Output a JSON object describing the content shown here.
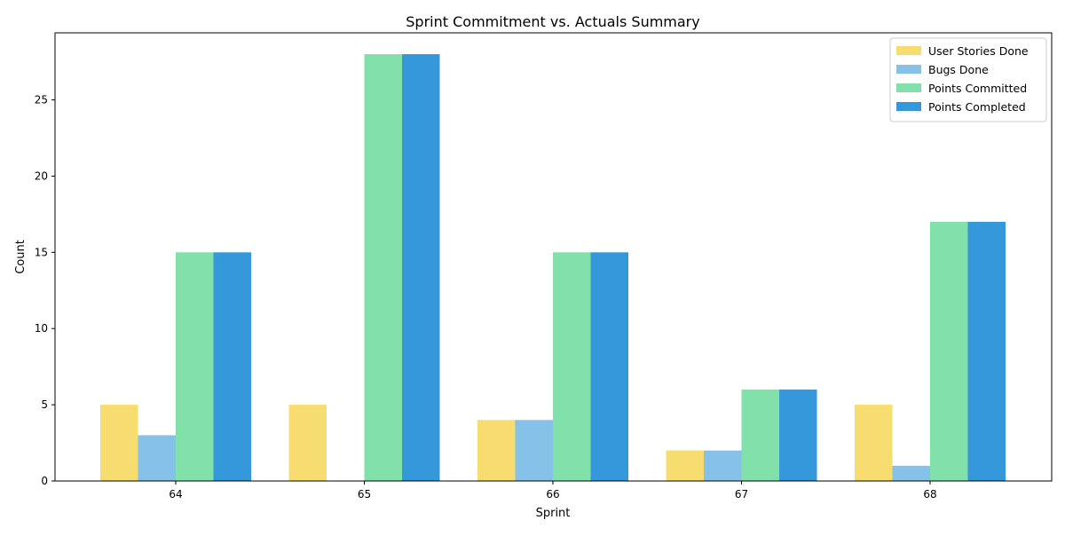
{
  "chart_data": {
    "type": "bar",
    "title": "Sprint Commitment vs. Actuals Summary",
    "xlabel": "Sprint",
    "ylabel": "Count",
    "categories": [
      "64",
      "65",
      "66",
      "67",
      "68"
    ],
    "ylim": [
      0,
      29.4
    ],
    "yticks": [
      0,
      5,
      10,
      15,
      20,
      25
    ],
    "grid": false,
    "legend_position": "top-right",
    "series": [
      {
        "name": "User Stories Done",
        "color": "#f7dc6f",
        "values": [
          5,
          5,
          4,
          2,
          5
        ]
      },
      {
        "name": "Bugs Done",
        "color": "#85c1e9",
        "values": [
          3,
          0,
          4,
          2,
          1
        ]
      },
      {
        "name": "Points Committed",
        "color": "#82e0aa",
        "values": [
          15,
          28,
          15,
          6,
          17
        ]
      },
      {
        "name": "Points Completed",
        "color": "#3498db",
        "values": [
          15,
          28,
          15,
          6,
          17
        ]
      }
    ]
  }
}
